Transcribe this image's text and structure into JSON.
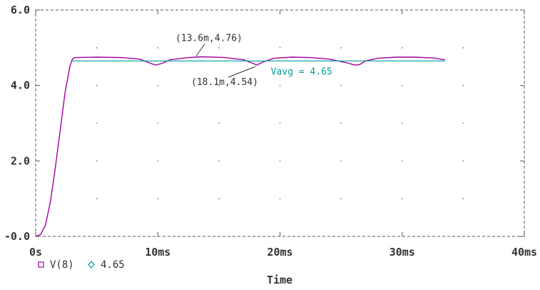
{
  "chart_data": {
    "type": "line",
    "xlabel": "Time",
    "ylabel": "",
    "xlim": [
      0,
      40
    ],
    "ylim": [
      0,
      6
    ],
    "x_unit": "ms",
    "x_tick_values": [
      0,
      10,
      20,
      30,
      40
    ],
    "x_tick_labels": [
      "0s",
      "10ms",
      "20ms",
      "30ms",
      "40ms"
    ],
    "y_tick_values": [
      0,
      2,
      4,
      6
    ],
    "y_tick_labels": [
      "-0.0",
      "2.0",
      "4.0",
      "6.0"
    ],
    "grid": true,
    "legend_position": "bottom-left",
    "colors": {
      "vout": "#a000a0",
      "vavg": "#00a0a0",
      "frame": "#555555",
      "text": "#333333"
    },
    "series": [
      {
        "name": "V(8)",
        "marker": "square",
        "color": "#a000a0",
        "x": [
          0,
          0.4,
          0.8,
          1.2,
          1.6,
          2.0,
          2.4,
          2.8,
          3.0,
          3.2,
          5.0,
          7.0,
          8.5,
          9.3,
          9.8,
          10.3,
          11.0,
          12.5,
          13.6,
          15.5,
          17.0,
          17.7,
          18.1,
          18.6,
          19.5,
          21.0,
          22.5,
          24.0,
          25.5,
          26.1,
          26.5,
          27.0,
          28.0,
          29.5,
          31.0,
          32.5,
          33.5
        ],
        "values": [
          0,
          0.05,
          0.3,
          0.9,
          1.8,
          2.8,
          3.8,
          4.5,
          4.7,
          4.74,
          4.75,
          4.74,
          4.7,
          4.6,
          4.54,
          4.58,
          4.68,
          4.74,
          4.76,
          4.74,
          4.68,
          4.6,
          4.54,
          4.62,
          4.72,
          4.75,
          4.74,
          4.7,
          4.6,
          4.54,
          4.55,
          4.65,
          4.72,
          4.75,
          4.75,
          4.73,
          4.68
        ]
      },
      {
        "name": "4.65",
        "marker": "diamond",
        "color": "#00a0a0",
        "x": [
          3.0,
          33.5
        ],
        "values": [
          4.65,
          4.65
        ]
      }
    ],
    "annotations": [
      {
        "text": "(13.6m,4.76)",
        "x": 13.6,
        "y": 4.76
      },
      {
        "text": "(18.1m,4.54)",
        "x": 18.1,
        "y": 4.54
      },
      {
        "text": "Vavg = 4.65",
        "x": 21.0,
        "y": 4.65
      }
    ]
  }
}
